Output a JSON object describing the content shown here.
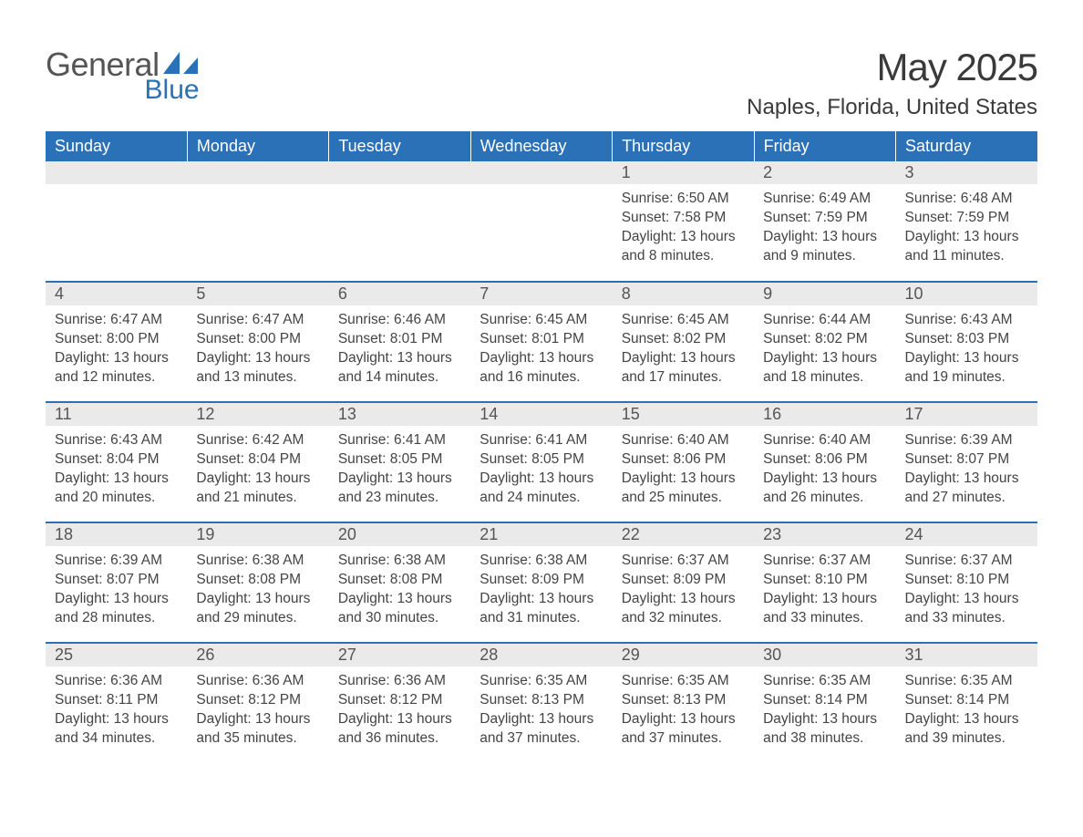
{
  "logo": {
    "word1": "General",
    "word2": "Blue",
    "text_color": "#555555",
    "accent_color": "#2a71b8"
  },
  "title": "May 2025",
  "location": "Naples, Florida, United States",
  "colors": {
    "header_bg": "#2a71b8",
    "header_text": "#ffffff",
    "daynum_bg": "#eaeaea",
    "body_text": "#444444",
    "row_border": "#2a71b8",
    "page_bg": "#ffffff"
  },
  "typography": {
    "title_fontsize": 42,
    "location_fontsize": 24,
    "header_fontsize": 18,
    "daynum_fontsize": 18,
    "body_fontsize": 15.5,
    "font_family": "Arial"
  },
  "weekdays": [
    "Sunday",
    "Monday",
    "Tuesday",
    "Wednesday",
    "Thursday",
    "Friday",
    "Saturday"
  ],
  "weeks": [
    [
      null,
      null,
      null,
      null,
      {
        "day": "1",
        "sunrise": "6:50 AM",
        "sunset": "7:58 PM",
        "daylight": "13 hours and 8 minutes."
      },
      {
        "day": "2",
        "sunrise": "6:49 AM",
        "sunset": "7:59 PM",
        "daylight": "13 hours and 9 minutes."
      },
      {
        "day": "3",
        "sunrise": "6:48 AM",
        "sunset": "7:59 PM",
        "daylight": "13 hours and 11 minutes."
      }
    ],
    [
      {
        "day": "4",
        "sunrise": "6:47 AM",
        "sunset": "8:00 PM",
        "daylight": "13 hours and 12 minutes."
      },
      {
        "day": "5",
        "sunrise": "6:47 AM",
        "sunset": "8:00 PM",
        "daylight": "13 hours and 13 minutes."
      },
      {
        "day": "6",
        "sunrise": "6:46 AM",
        "sunset": "8:01 PM",
        "daylight": "13 hours and 14 minutes."
      },
      {
        "day": "7",
        "sunrise": "6:45 AM",
        "sunset": "8:01 PM",
        "daylight": "13 hours and 16 minutes."
      },
      {
        "day": "8",
        "sunrise": "6:45 AM",
        "sunset": "8:02 PM",
        "daylight": "13 hours and 17 minutes."
      },
      {
        "day": "9",
        "sunrise": "6:44 AM",
        "sunset": "8:02 PM",
        "daylight": "13 hours and 18 minutes."
      },
      {
        "day": "10",
        "sunrise": "6:43 AM",
        "sunset": "8:03 PM",
        "daylight": "13 hours and 19 minutes."
      }
    ],
    [
      {
        "day": "11",
        "sunrise": "6:43 AM",
        "sunset": "8:04 PM",
        "daylight": "13 hours and 20 minutes."
      },
      {
        "day": "12",
        "sunrise": "6:42 AM",
        "sunset": "8:04 PM",
        "daylight": "13 hours and 21 minutes."
      },
      {
        "day": "13",
        "sunrise": "6:41 AM",
        "sunset": "8:05 PM",
        "daylight": "13 hours and 23 minutes."
      },
      {
        "day": "14",
        "sunrise": "6:41 AM",
        "sunset": "8:05 PM",
        "daylight": "13 hours and 24 minutes."
      },
      {
        "day": "15",
        "sunrise": "6:40 AM",
        "sunset": "8:06 PM",
        "daylight": "13 hours and 25 minutes."
      },
      {
        "day": "16",
        "sunrise": "6:40 AM",
        "sunset": "8:06 PM",
        "daylight": "13 hours and 26 minutes."
      },
      {
        "day": "17",
        "sunrise": "6:39 AM",
        "sunset": "8:07 PM",
        "daylight": "13 hours and 27 minutes."
      }
    ],
    [
      {
        "day": "18",
        "sunrise": "6:39 AM",
        "sunset": "8:07 PM",
        "daylight": "13 hours and 28 minutes."
      },
      {
        "day": "19",
        "sunrise": "6:38 AM",
        "sunset": "8:08 PM",
        "daylight": "13 hours and 29 minutes."
      },
      {
        "day": "20",
        "sunrise": "6:38 AM",
        "sunset": "8:08 PM",
        "daylight": "13 hours and 30 minutes."
      },
      {
        "day": "21",
        "sunrise": "6:38 AM",
        "sunset": "8:09 PM",
        "daylight": "13 hours and 31 minutes."
      },
      {
        "day": "22",
        "sunrise": "6:37 AM",
        "sunset": "8:09 PM",
        "daylight": "13 hours and 32 minutes."
      },
      {
        "day": "23",
        "sunrise": "6:37 AM",
        "sunset": "8:10 PM",
        "daylight": "13 hours and 33 minutes."
      },
      {
        "day": "24",
        "sunrise": "6:37 AM",
        "sunset": "8:10 PM",
        "daylight": "13 hours and 33 minutes."
      }
    ],
    [
      {
        "day": "25",
        "sunrise": "6:36 AM",
        "sunset": "8:11 PM",
        "daylight": "13 hours and 34 minutes."
      },
      {
        "day": "26",
        "sunrise": "6:36 AM",
        "sunset": "8:12 PM",
        "daylight": "13 hours and 35 minutes."
      },
      {
        "day": "27",
        "sunrise": "6:36 AM",
        "sunset": "8:12 PM",
        "daylight": "13 hours and 36 minutes."
      },
      {
        "day": "28",
        "sunrise": "6:35 AM",
        "sunset": "8:13 PM",
        "daylight": "13 hours and 37 minutes."
      },
      {
        "day": "29",
        "sunrise": "6:35 AM",
        "sunset": "8:13 PM",
        "daylight": "13 hours and 37 minutes."
      },
      {
        "day": "30",
        "sunrise": "6:35 AM",
        "sunset": "8:14 PM",
        "daylight": "13 hours and 38 minutes."
      },
      {
        "day": "31",
        "sunrise": "6:35 AM",
        "sunset": "8:14 PM",
        "daylight": "13 hours and 39 minutes."
      }
    ]
  ],
  "labels": {
    "sunrise": "Sunrise:",
    "sunset": "Sunset:",
    "daylight": "Daylight:"
  }
}
